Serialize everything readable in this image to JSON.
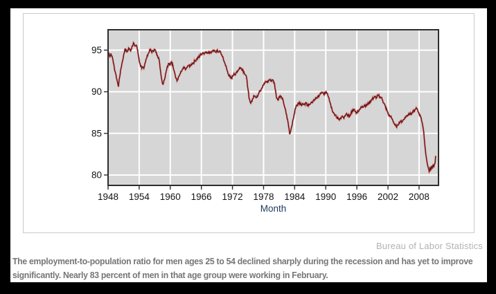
{
  "frame": {
    "background": "#000000",
    "page_background": "#ffffff"
  },
  "source_credit": "Bureau of Labor Statistics",
  "caption": {
    "full": "The employment-to-population ratio for men ages 25 to 54 declined sharply during the recession and has yet to improve significantly. Nearly 83 percent of men in that age group were working in February.",
    "line1": "The employment-to-population ratio for men ages 25 to 54 declined sharply during the recession and has yet to improve",
    "line2": "significantly. Nearly 83 percent of men in that age group were working in February."
  },
  "chart_data": {
    "type": "line",
    "title": "",
    "xlabel": "Month",
    "ylabel": "",
    "x_ticks": [
      1948,
      1954,
      1960,
      1966,
      1972,
      1978,
      1984,
      1990,
      1996,
      2002,
      2008
    ],
    "x_tick_labels": [
      "1948",
      "1954",
      "1960",
      "1966",
      "1972",
      "1978",
      "1984",
      "1990",
      "1996",
      "2002",
      "2008"
    ],
    "y_ticks": [
      95,
      90,
      85,
      80
    ],
    "y_tick_labels": [
      "95",
      "90",
      "85",
      "80"
    ],
    "xlim": [
      1948,
      2011.75
    ],
    "ylim": [
      78.75,
      97.45
    ],
    "grid": true,
    "legend_position": "none",
    "colors": {
      "line": "#6f1416",
      "line_halo": "#d8a0a0",
      "plot_bg": "#d6d6d6",
      "grid": "#ffffff",
      "axis": "#2d2d2d",
      "tick_label": "#141414",
      "xlabel_color": "#1c3a5e"
    },
    "series": [
      {
        "name": "Employment-to-population ratio, men ages 25 to 54 (percent)",
        "points": [
          [
            1948.0,
            94.3
          ],
          [
            1948.15,
            94.7
          ],
          [
            1948.35,
            94.2
          ],
          [
            1948.55,
            94.6
          ],
          [
            1948.75,
            94.3
          ],
          [
            1948.95,
            93.8
          ],
          [
            1949.2,
            92.9
          ],
          [
            1949.45,
            92.2
          ],
          [
            1949.7,
            91.5
          ],
          [
            1949.9,
            90.9
          ],
          [
            1950.0,
            90.6
          ],
          [
            1950.25,
            91.8
          ],
          [
            1950.5,
            92.8
          ],
          [
            1950.75,
            93.6
          ],
          [
            1951.0,
            94.4
          ],
          [
            1951.3,
            95.2
          ],
          [
            1951.55,
            94.8
          ],
          [
            1951.8,
            95.0
          ],
          [
            1952.1,
            95.2
          ],
          [
            1952.35,
            94.9
          ],
          [
            1952.6,
            95.4
          ],
          [
            1952.9,
            95.9
          ],
          [
            1953.15,
            95.5
          ],
          [
            1953.45,
            95.6
          ],
          [
            1953.7,
            95.0
          ],
          [
            1953.95,
            94.0
          ],
          [
            1954.25,
            93.1
          ],
          [
            1954.5,
            92.8
          ],
          [
            1954.7,
            93.0
          ],
          [
            1954.9,
            92.8
          ],
          [
            1955.1,
            93.4
          ],
          [
            1955.4,
            94.0
          ],
          [
            1955.7,
            94.5
          ],
          [
            1955.95,
            94.8
          ],
          [
            1956.2,
            95.1
          ],
          [
            1956.45,
            94.7
          ],
          [
            1956.7,
            94.9
          ],
          [
            1957.0,
            95.1
          ],
          [
            1957.25,
            94.7
          ],
          [
            1957.5,
            94.4
          ],
          [
            1957.75,
            94.1
          ],
          [
            1957.95,
            93.4
          ],
          [
            1958.2,
            92.1
          ],
          [
            1958.45,
            91.1
          ],
          [
            1958.6,
            90.9
          ],
          [
            1958.85,
            91.4
          ],
          [
            1959.1,
            92.2
          ],
          [
            1959.4,
            93.0
          ],
          [
            1959.7,
            93.4
          ],
          [
            1959.95,
            93.2
          ],
          [
            1960.2,
            93.6
          ],
          [
            1960.5,
            93.2
          ],
          [
            1960.8,
            92.4
          ],
          [
            1961.1,
            91.6
          ],
          [
            1961.3,
            91.3
          ],
          [
            1961.55,
            91.7
          ],
          [
            1961.8,
            92.0
          ],
          [
            1962.1,
            92.4
          ],
          [
            1962.4,
            92.7
          ],
          [
            1962.7,
            92.9
          ],
          [
            1963.0,
            92.7
          ],
          [
            1963.3,
            93.0
          ],
          [
            1963.6,
            93.2
          ],
          [
            1963.9,
            93.1
          ],
          [
            1964.2,
            93.4
          ],
          [
            1964.5,
            93.5
          ],
          [
            1964.8,
            93.7
          ],
          [
            1965.1,
            93.9
          ],
          [
            1965.4,
            94.1
          ],
          [
            1965.7,
            94.3
          ],
          [
            1966.0,
            94.5
          ],
          [
            1966.3,
            94.7
          ],
          [
            1966.6,
            94.6
          ],
          [
            1966.9,
            94.8
          ],
          [
            1967.2,
            94.7
          ],
          [
            1967.5,
            94.8
          ],
          [
            1967.8,
            94.7
          ],
          [
            1968.1,
            94.8
          ],
          [
            1968.4,
            94.9
          ],
          [
            1968.7,
            94.8
          ],
          [
            1969.0,
            94.9
          ],
          [
            1969.25,
            94.8
          ],
          [
            1969.5,
            94.9
          ],
          [
            1969.75,
            94.7
          ],
          [
            1970.0,
            94.3
          ],
          [
            1970.3,
            93.8
          ],
          [
            1970.6,
            93.3
          ],
          [
            1970.9,
            92.7
          ],
          [
            1971.2,
            92.1
          ],
          [
            1971.5,
            91.8
          ],
          [
            1971.8,
            91.6
          ],
          [
            1972.05,
            91.9
          ],
          [
            1972.3,
            92.2
          ],
          [
            1972.55,
            92.0
          ],
          [
            1972.8,
            92.4
          ],
          [
            1973.1,
            92.6
          ],
          [
            1973.4,
            92.9
          ],
          [
            1973.7,
            92.8
          ],
          [
            1973.95,
            92.7
          ],
          [
            1974.25,
            92.3
          ],
          [
            1974.55,
            92.0
          ],
          [
            1974.8,
            91.4
          ],
          [
            1975.0,
            90.3
          ],
          [
            1975.2,
            89.2
          ],
          [
            1975.45,
            88.7
          ],
          [
            1975.7,
            88.9
          ],
          [
            1975.95,
            89.2
          ],
          [
            1976.25,
            89.5
          ],
          [
            1976.5,
            89.3
          ],
          [
            1976.75,
            89.5
          ],
          [
            1977.0,
            89.7
          ],
          [
            1977.3,
            90.1
          ],
          [
            1977.6,
            90.4
          ],
          [
            1977.9,
            90.8
          ],
          [
            1978.2,
            91.0
          ],
          [
            1978.5,
            91.2
          ],
          [
            1978.75,
            91.1
          ],
          [
            1979.0,
            91.4
          ],
          [
            1979.25,
            91.5
          ],
          [
            1979.5,
            91.3
          ],
          [
            1979.8,
            91.4
          ],
          [
            1980.05,
            91.1
          ],
          [
            1980.3,
            90.2
          ],
          [
            1980.55,
            89.2
          ],
          [
            1980.75,
            89.0
          ],
          [
            1981.0,
            89.4
          ],
          [
            1981.25,
            89.5
          ],
          [
            1981.5,
            89.3
          ],
          [
            1981.8,
            88.9
          ],
          [
            1982.1,
            88.1
          ],
          [
            1982.4,
            87.3
          ],
          [
            1982.7,
            86.4
          ],
          [
            1982.95,
            85.4
          ],
          [
            1983.05,
            84.9
          ],
          [
            1983.3,
            85.5
          ],
          [
            1983.6,
            86.4
          ],
          [
            1983.9,
            87.3
          ],
          [
            1984.15,
            88.0
          ],
          [
            1984.4,
            88.4
          ],
          [
            1984.7,
            88.6
          ],
          [
            1984.95,
            88.7
          ],
          [
            1985.25,
            88.4
          ],
          [
            1985.55,
            88.6
          ],
          [
            1985.85,
            88.5
          ],
          [
            1986.15,
            88.7
          ],
          [
            1986.45,
            88.3
          ],
          [
            1986.75,
            88.5
          ],
          [
            1987.0,
            88.5
          ],
          [
            1987.3,
            88.7
          ],
          [
            1987.6,
            88.9
          ],
          [
            1987.9,
            89.1
          ],
          [
            1988.2,
            89.2
          ],
          [
            1988.5,
            89.4
          ],
          [
            1988.8,
            89.6
          ],
          [
            1989.1,
            89.8
          ],
          [
            1989.35,
            89.9
          ],
          [
            1989.6,
            89.7
          ],
          [
            1989.85,
            89.9
          ],
          [
            1990.05,
            90.0
          ],
          [
            1990.3,
            89.8
          ],
          [
            1990.6,
            89.3
          ],
          [
            1990.9,
            88.6
          ],
          [
            1991.2,
            87.9
          ],
          [
            1991.5,
            87.5
          ],
          [
            1991.8,
            87.2
          ],
          [
            1992.1,
            86.9
          ],
          [
            1992.4,
            86.8
          ],
          [
            1992.7,
            86.7
          ],
          [
            1993.0,
            86.9
          ],
          [
            1993.25,
            87.0
          ],
          [
            1993.5,
            86.8
          ],
          [
            1993.8,
            87.2
          ],
          [
            1994.1,
            87.3
          ],
          [
            1994.35,
            87.1
          ],
          [
            1994.6,
            87.0
          ],
          [
            1994.85,
            87.4
          ],
          [
            1995.1,
            87.7
          ],
          [
            1995.4,
            87.9
          ],
          [
            1995.7,
            87.6
          ],
          [
            1995.95,
            87.5
          ],
          [
            1996.25,
            87.7
          ],
          [
            1996.55,
            87.9
          ],
          [
            1996.85,
            88.1
          ],
          [
            1997.15,
            88.2
          ],
          [
            1997.45,
            88.4
          ],
          [
            1997.75,
            88.3
          ],
          [
            1998.05,
            88.5
          ],
          [
            1998.35,
            88.7
          ],
          [
            1998.65,
            88.9
          ],
          [
            1998.95,
            89.1
          ],
          [
            1999.25,
            89.3
          ],
          [
            1999.55,
            89.4
          ],
          [
            1999.8,
            89.3
          ],
          [
            2000.1,
            89.6
          ],
          [
            2000.4,
            89.4
          ],
          [
            2000.7,
            89.3
          ],
          [
            2000.95,
            89.0
          ],
          [
            2001.25,
            88.6
          ],
          [
            2001.55,
            88.1
          ],
          [
            2001.85,
            87.7
          ],
          [
            2002.15,
            87.2
          ],
          [
            2002.45,
            87.0
          ],
          [
            2002.75,
            86.8
          ],
          [
            2003.05,
            86.4
          ],
          [
            2003.35,
            86.0
          ],
          [
            2003.6,
            85.8
          ],
          [
            2003.85,
            86.0
          ],
          [
            2004.15,
            86.3
          ],
          [
            2004.45,
            86.5
          ],
          [
            2004.7,
            86.4
          ],
          [
            2004.95,
            86.6
          ],
          [
            2005.25,
            86.9
          ],
          [
            2005.55,
            87.1
          ],
          [
            2005.85,
            87.2
          ],
          [
            2006.15,
            87.4
          ],
          [
            2006.45,
            87.3
          ],
          [
            2006.75,
            87.5
          ],
          [
            2007.05,
            87.7
          ],
          [
            2007.35,
            87.9
          ],
          [
            2007.55,
            88.0
          ],
          [
            2007.8,
            87.6
          ],
          [
            2008.0,
            87.4
          ],
          [
            2008.2,
            87.2
          ],
          [
            2008.4,
            86.9
          ],
          [
            2008.6,
            86.3
          ],
          [
            2008.8,
            85.6
          ],
          [
            2009.0,
            84.4
          ],
          [
            2009.2,
            83.1
          ],
          [
            2009.4,
            82.1
          ],
          [
            2009.6,
            81.3
          ],
          [
            2009.8,
            80.8
          ],
          [
            2009.95,
            80.4
          ],
          [
            2010.1,
            80.9
          ],
          [
            2010.25,
            80.6
          ],
          [
            2010.4,
            81.1
          ],
          [
            2010.55,
            80.8
          ],
          [
            2010.7,
            81.2
          ],
          [
            2010.85,
            80.9
          ],
          [
            2011.0,
            81.3
          ],
          [
            2011.1,
            81.5
          ],
          [
            2011.2,
            82.3
          ]
        ]
      }
    ]
  }
}
